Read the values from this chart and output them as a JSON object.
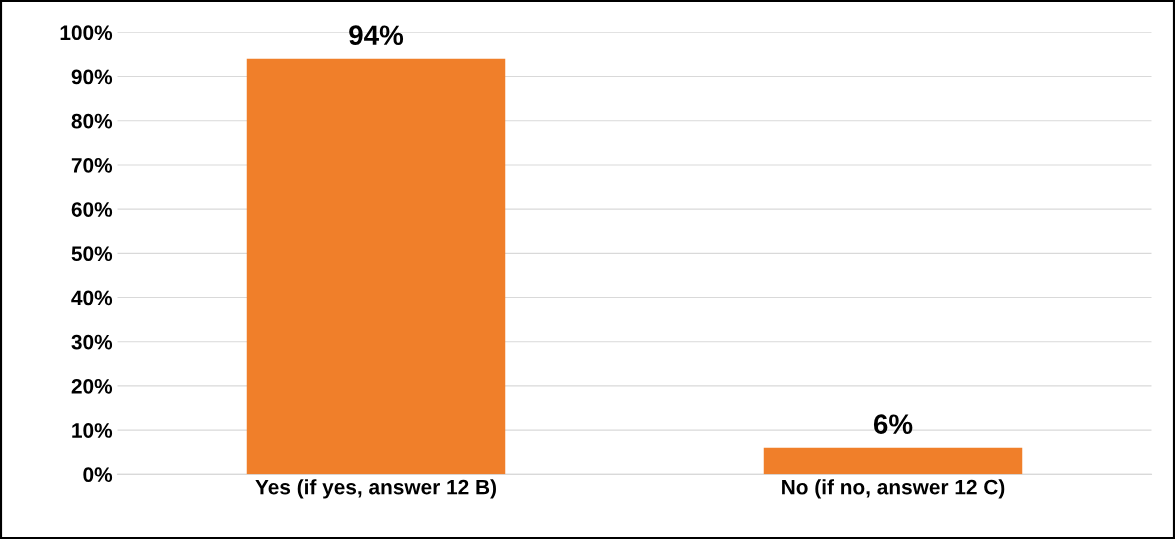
{
  "chart_data": {
    "type": "bar",
    "categories": [
      "Yes (if yes, answer 12 B)",
      "No (if no, answer 12 C)"
    ],
    "values": [
      94,
      6
    ],
    "value_labels": [
      "94%",
      "6%"
    ],
    "color": "#f07f2a",
    "ylim": [
      0,
      100
    ],
    "yticks": [
      {
        "value": 0,
        "label": "0%"
      },
      {
        "value": 10,
        "label": "10%"
      },
      {
        "value": 20,
        "label": "20%"
      },
      {
        "value": 30,
        "label": "30%"
      },
      {
        "value": 40,
        "label": "40%"
      },
      {
        "value": 50,
        "label": "50%"
      },
      {
        "value": 60,
        "label": "60%"
      },
      {
        "value": 70,
        "label": "70%"
      },
      {
        "value": 80,
        "label": "80%"
      },
      {
        "value": 90,
        "label": "90%"
      },
      {
        "value": 100,
        "label": "100%"
      }
    ],
    "grid": "y",
    "legend": false
  }
}
